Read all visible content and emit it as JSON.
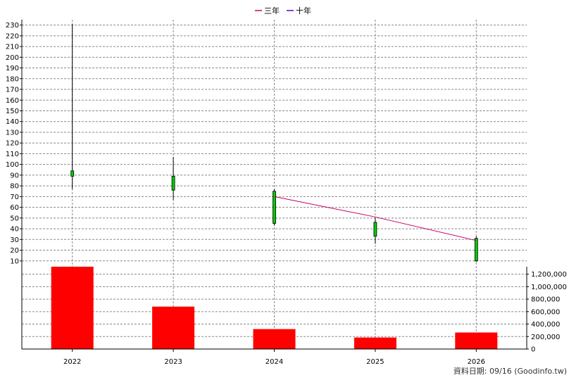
{
  "legend": [
    {
      "label": "三年",
      "color": "#cc0066"
    },
    {
      "label": "十年",
      "color": "#6600cc"
    }
  ],
  "source_note": "資料日期: 09/16  (Goodinfo.tw)",
  "chart_data": [
    {
      "type": "candlestick",
      "categories": [
        "2022",
        "2023",
        "2024",
        "2025",
        "2026"
      ],
      "ylim": [
        0,
        235
      ],
      "yticks": [
        10,
        20,
        30,
        40,
        50,
        60,
        70,
        80,
        90,
        100,
        110,
        120,
        130,
        140,
        150,
        160,
        170,
        180,
        190,
        200,
        210,
        220,
        230
      ],
      "grid": true,
      "candles": [
        {
          "x": "2022",
          "open": 89,
          "close": 94,
          "high": 231,
          "low": 77,
          "color": "#00cc00"
        },
        {
          "x": "2023",
          "open": 76,
          "close": 89,
          "high": 107,
          "low": 67,
          "color": "#00cc00"
        },
        {
          "x": "2024",
          "open": 45,
          "close": 75,
          "high": 77,
          "low": 43,
          "color": "#00cc00"
        },
        {
          "x": "2025",
          "open": 33,
          "close": 46,
          "high": 50,
          "low": 26,
          "color": "#00cc00"
        },
        {
          "x": "2026",
          "open": 10,
          "close": 31,
          "high": 33,
          "low": 9,
          "color": "#00cc00"
        }
      ],
      "series": [
        {
          "name": "三年",
          "color": "#cc0066",
          "points": [
            {
              "x": "2024",
              "y": 70
            },
            {
              "x": "2025",
              "y": 51
            },
            {
              "x": "2026",
              "y": 29
            }
          ]
        },
        {
          "name": "十年",
          "color": "#6600cc",
          "points": []
        }
      ]
    },
    {
      "type": "bar",
      "categories": [
        "2022",
        "2023",
        "2024",
        "2025",
        "2026"
      ],
      "values": [
        1320000,
        680000,
        320000,
        185000,
        265000
      ],
      "color": "#ff0000",
      "ylim": [
        0,
        1320000
      ],
      "yticks": [
        0,
        200000,
        400000,
        600000,
        800000,
        1000000,
        1200000
      ],
      "ytick_labels": [
        "0",
        "200,000",
        "400,000",
        "600,000",
        "800,000",
        "1,000,000",
        "1,200,000"
      ],
      "grid": true
    }
  ]
}
